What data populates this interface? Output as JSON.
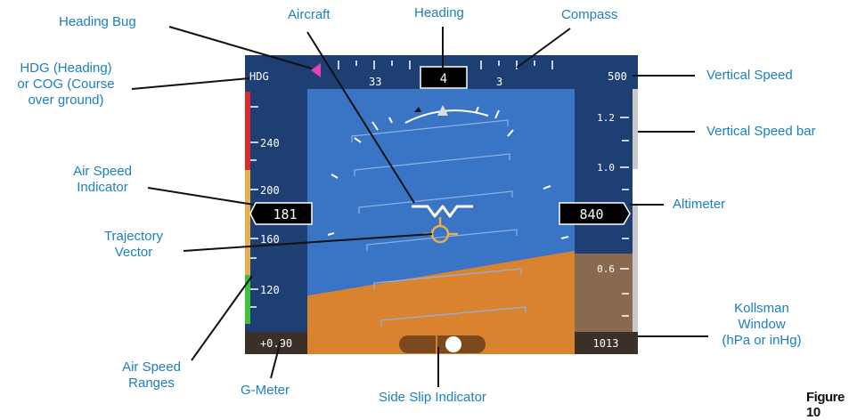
{
  "callouts": {
    "heading_bug": "Heading Bug",
    "aircraft": "Aircraft",
    "heading": "Heading",
    "compass": "Compass",
    "hdg_cog_line1": "HDG (Heading)",
    "hdg_cog_line2": "or COG (Course",
    "hdg_cog_line3": "over ground)",
    "vertical_speed": "Vertical Speed",
    "vertical_speed_bar": "Vertical Speed bar",
    "air_speed_indicator_line1": "Air Speed",
    "air_speed_indicator_line2": "Indicator",
    "altimeter": "Altimeter",
    "trajectory_vector_line1": "Trajectory",
    "trajectory_vector_line2": "Vector",
    "kollsman_line1": "Kollsman",
    "kollsman_line2": "Window",
    "kollsman_line3": "(hPa or inHg)",
    "air_speed_ranges_line1": "Air Speed",
    "air_speed_ranges_line2": "Ranges",
    "g_meter": "G-Meter",
    "side_slip_indicator": "Side Slip Indicator"
  },
  "figure_label": "Figure 10",
  "pfd": {
    "hdg_label": "HDG",
    "heading_value": "4",
    "compass_ticks": [
      "33",
      "3"
    ],
    "vertical_speed_value": "500",
    "vs_scale": [
      "1.2",
      "1.0",
      "0.6"
    ],
    "speed_scale": [
      "240",
      "200",
      "160",
      "120"
    ],
    "airspeed_value": "181",
    "altitude_value": "840",
    "g_meter_value": "+0.90",
    "kollsman_value": "1013"
  },
  "colors": {
    "callout_text": "#1a7fc4",
    "sky": "#3a74c4",
    "ground": "#d9832e",
    "panel": "#1e3f74",
    "heading_bug": "#e83fb4",
    "speed_red": "#e0282a",
    "speed_yellow": "#e8b04a",
    "speed_green": "#3ec23a",
    "trajectory": "#e8b04a"
  }
}
